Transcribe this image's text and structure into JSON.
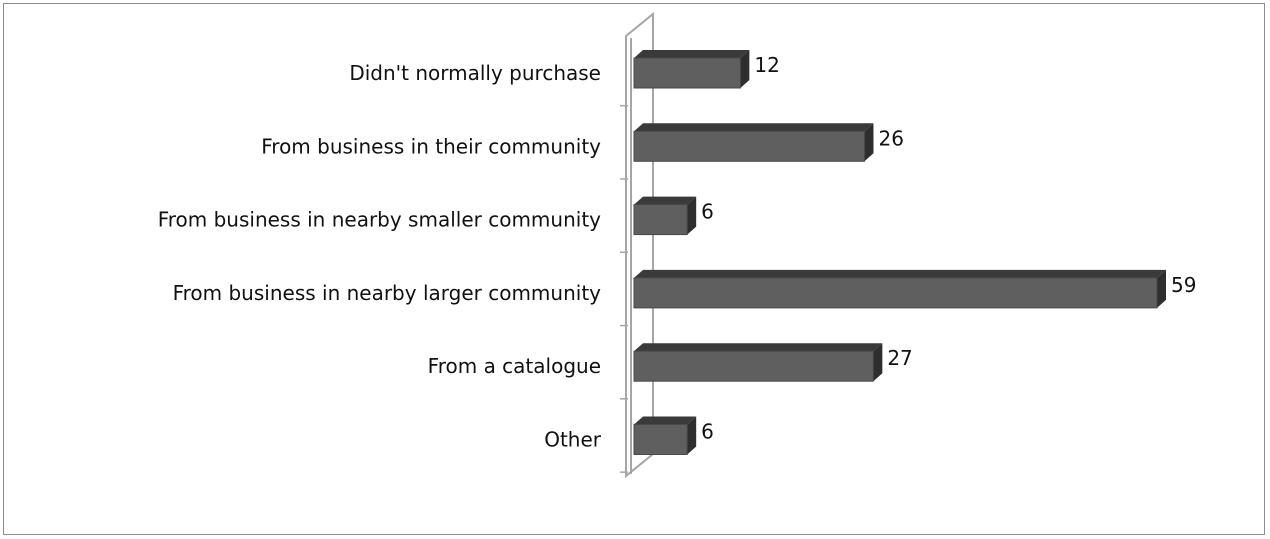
{
  "chart_data": {
    "type": "bar",
    "orientation": "horizontal",
    "style": "3d",
    "categories": [
      "Didn't normally purchase",
      "From business in their community",
      "From business in nearby smaller community",
      "From business in nearby larger community",
      "From a catalogue",
      "Other"
    ],
    "values": [
      12,
      26,
      6,
      59,
      27,
      6
    ],
    "xlim": [
      0,
      59
    ],
    "grid": false,
    "legend": "none",
    "colors": {
      "bar_front": "#5f5f5f",
      "bar_top": "#3a3a3a",
      "bar_side": "#2e2e2e",
      "axis_wall": "#a6a6a6"
    }
  }
}
